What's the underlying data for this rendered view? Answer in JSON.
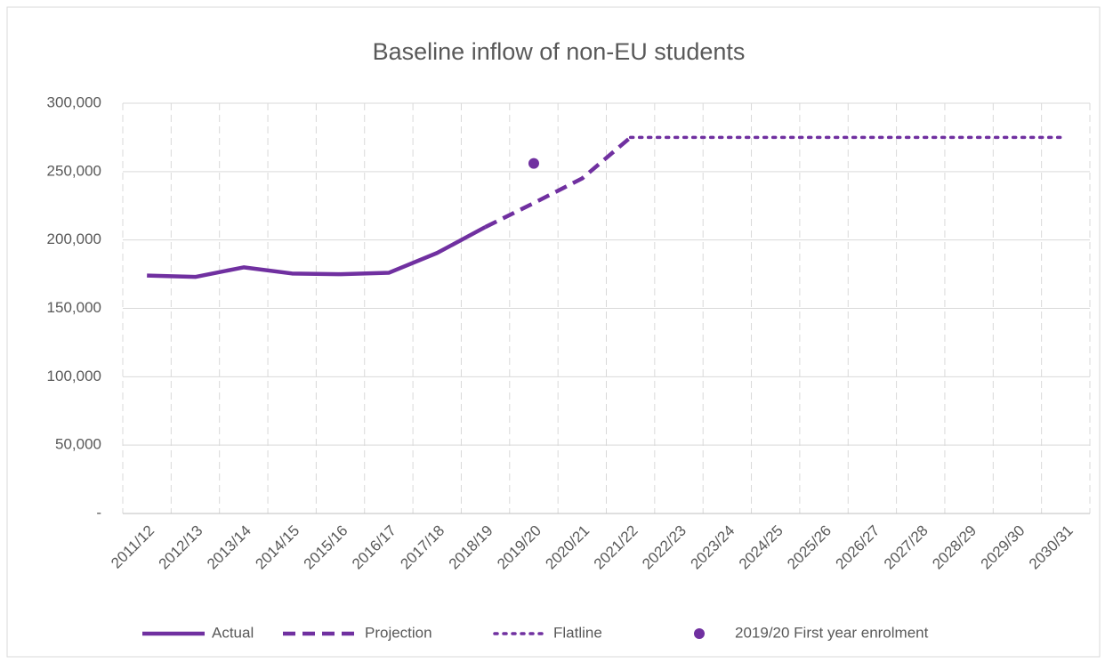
{
  "chart_data": {
    "type": "line",
    "title": "Baseline inflow of non-EU students",
    "categories": [
      "2011/12",
      "2012/13",
      "2013/14",
      "2014/15",
      "2015/16",
      "2016/17",
      "2017/18",
      "2018/19",
      "2019/20",
      "2020/21",
      "2021/22",
      "2022/23",
      "2023/24",
      "2024/25",
      "2025/26",
      "2026/27",
      "2027/28",
      "2028/29",
      "2029/30",
      "2030/31"
    ],
    "series": [
      {
        "name": "Actual",
        "color": "#7030a0",
        "style": "solid",
        "values": [
          174000,
          173000,
          180000,
          175500,
          175000,
          176000,
          190500,
          209500,
          null,
          null,
          null,
          null,
          null,
          null,
          null,
          null,
          null,
          null,
          null,
          null
        ]
      },
      {
        "name": "Projection",
        "color": "#7030a0",
        "style": "dashed",
        "values": [
          null,
          null,
          null,
          null,
          null,
          null,
          null,
          209500,
          227000,
          245000,
          275000,
          null,
          null,
          null,
          null,
          null,
          null,
          null,
          null,
          null
        ]
      },
      {
        "name": "Flatline",
        "color": "#7030a0",
        "style": "dotted",
        "values": [
          null,
          null,
          null,
          null,
          null,
          null,
          null,
          null,
          null,
          null,
          275000,
          275000,
          275000,
          275000,
          275000,
          275000,
          275000,
          275000,
          275000,
          275000
        ]
      },
      {
        "name": "2019/20 First year enrolment",
        "color": "#7030a0",
        "style": "marker",
        "values": [
          null,
          null,
          null,
          null,
          null,
          null,
          null,
          null,
          256000,
          null,
          null,
          null,
          null,
          null,
          null,
          null,
          null,
          null,
          null,
          null
        ]
      }
    ],
    "ylim": [
      0,
      300000
    ],
    "yticks": [
      {
        "value": 0,
        "label": "-"
      },
      {
        "value": 50000,
        "label": "50,000"
      },
      {
        "value": 100000,
        "label": "100,000"
      },
      {
        "value": 150000,
        "label": "150,000"
      },
      {
        "value": 200000,
        "label": "200,000"
      },
      {
        "value": 250000,
        "label": "250,000"
      },
      {
        "value": 300000,
        "label": "300,000"
      }
    ],
    "grid": true,
    "legend": "bottom"
  }
}
